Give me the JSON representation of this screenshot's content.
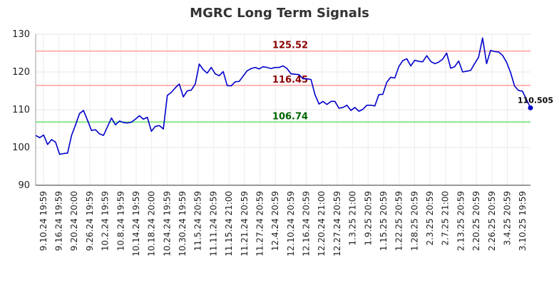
{
  "chart_data": {
    "type": "line",
    "title": "MGRC Long Term Signals",
    "xlabel": "",
    "ylabel": "",
    "ylim": [
      90,
      130
    ],
    "y_ticks": [
      90,
      100,
      110,
      120,
      130
    ],
    "grid": true,
    "x_tick_labels": [
      "9.10.24 19:59",
      "9.16.24 19:59",
      "9.20.24 20:00",
      "9.26.24 19:59",
      "10.2.24 19:59",
      "10.8.24 19:59",
      "10.14.24 19:59",
      "10.18.24 20:00",
      "10.24.24 19:59",
      "10.30.24 19:59",
      "11.5.24 20:59",
      "11.11.24 20:59",
      "11.15.24 21:00",
      "11.21.24 20:59",
      "11.27.24 20:59",
      "12.4.24 20:59",
      "12.10.24 20:59",
      "12.16.24 20:59",
      "12.20.24 21:00",
      "12.27.24 20:59",
      "1.3.25 21:00",
      "1.9.25 20:59",
      "1.15.25 20:59",
      "1.22.25 20:59",
      "1.28.25 20:59",
      "2.3.25 20:59",
      "2.7.25 21:00",
      "2.13.25 20:59",
      "2.20.25 20:59",
      "2.26.25 20:59",
      "3.4.25 20:59",
      "3.10.25 19:59"
    ],
    "reference_lines": [
      {
        "label": "125.52",
        "value": 125.52,
        "color": "#8b0000",
        "line_color": "#ffb3b3"
      },
      {
        "label": "116.45",
        "value": 116.45,
        "color": "#8b0000",
        "line_color": "#ffb3b3"
      },
      {
        "label": "106.74",
        "value": 106.74,
        "color": "#006400",
        "line_color": "#88e888"
      }
    ],
    "last_value_label": "110.505",
    "series": [
      {
        "color": "#0000cc",
        "values": [
          103.2,
          102.6,
          103.3,
          100.8,
          102.1,
          101.4,
          98.2,
          98.4,
          98.5,
          103.2,
          106.0,
          109.0,
          109.8,
          107.2,
          104.5,
          104.7,
          103.6,
          103.2,
          105.5,
          107.8,
          106.0,
          107.0,
          106.6,
          106.5,
          106.7,
          107.5,
          108.4,
          107.5,
          108.0,
          104.3,
          105.6,
          105.8,
          104.9,
          113.8,
          114.6,
          115.8,
          116.8,
          113.4,
          115.0,
          115.2,
          116.8,
          122.1,
          120.6,
          119.7,
          121.2,
          119.5,
          119.0,
          120.1,
          116.4,
          116.3,
          117.4,
          117.5,
          118.9,
          120.3,
          120.9,
          121.2,
          120.8,
          121.4,
          121.2,
          120.9,
          121.2,
          121.2,
          121.6,
          120.9,
          119.5,
          119.4,
          119.3,
          118.2,
          118.2,
          118.0,
          114.0,
          111.5,
          112.2,
          111.4,
          112.2,
          112.2,
          110.4,
          110.6,
          111.2,
          109.8,
          110.6,
          109.6,
          110.1,
          111.2,
          111.2,
          111.0,
          114.0,
          114.1,
          117.3,
          118.6,
          118.4,
          121.4,
          123.0,
          123.5,
          121.6,
          123.1,
          122.8,
          122.7,
          124.3,
          122.8,
          122.2,
          122.6,
          123.4,
          125.0,
          121.0,
          121.4,
          122.9,
          120.0,
          120.2,
          120.4,
          122.2,
          123.9,
          129.0,
          122.2,
          125.7,
          125.4,
          125.3,
          124.4,
          122.6,
          119.9,
          116.3,
          115.1,
          114.9,
          112.7,
          110.505
        ]
      }
    ]
  }
}
